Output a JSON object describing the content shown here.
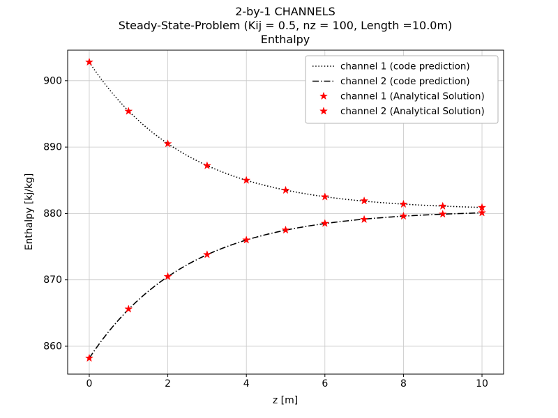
{
  "figure": {
    "title_lines": [
      "2-by-1 CHANNELS",
      "Steady-State-Problem (Kij = 0.5, nz = 100, Length =10.0m)",
      "Enthalpy"
    ],
    "xlabel": "z [m]",
    "ylabel": "Enthalpy [kj/kg]"
  },
  "colors": {
    "line": "#000000",
    "marker": "#ff0000",
    "grid": "#c8c8c8",
    "axis": "#000000",
    "legend_border": "#b3b3b3"
  },
  "chart_data": {
    "type": "line",
    "title": "2-by-1 CHANNELS | Steady-State-Problem (Kij = 0.5, nz = 100, Length =10.0m) | Enthalpy",
    "xlabel": "z [m]",
    "ylabel": "Enthalpy [kj/kg]",
    "xlim": [
      -0.55,
      10.55
    ],
    "ylim": [
      855.8,
      904.6
    ],
    "xticks": [
      0,
      2,
      4,
      6,
      8,
      10
    ],
    "yticks": [
      860,
      870,
      880,
      890,
      900
    ],
    "grid": true,
    "legend_position": "upper right",
    "series": [
      {
        "name": "channel 1 (code prediction)",
        "kind": "line",
        "style": "dotted",
        "color": "#000000",
        "model": {
          "mean": 880.5,
          "amplitude": 22.3,
          "decay": 0.4,
          "zmin": 0,
          "zmax": 10
        }
      },
      {
        "name": "channel 2 (code prediction)",
        "kind": "line",
        "style": "dashdot",
        "color": "#000000",
        "model": {
          "mean": 880.5,
          "amplitude": -22.3,
          "decay": 0.4,
          "zmin": 0,
          "zmax": 10
        }
      },
      {
        "name": "channel 1 (Analytical Solution)",
        "kind": "marker",
        "marker": "star",
        "color": "#ff0000",
        "x": [
          0,
          1,
          2,
          3,
          4,
          5,
          6,
          7,
          8,
          9,
          10
        ],
        "y": [
          902.8,
          895.4,
          890.5,
          887.2,
          885.0,
          883.5,
          882.5,
          881.9,
          881.4,
          881.1,
          880.9
        ]
      },
      {
        "name": "channel 2 (Analytical Solution)",
        "kind": "marker",
        "marker": "star",
        "color": "#ff0000",
        "x": [
          0,
          1,
          2,
          3,
          4,
          5,
          6,
          7,
          8,
          9,
          10
        ],
        "y": [
          858.2,
          865.6,
          870.5,
          873.8,
          876.0,
          877.5,
          878.5,
          879.1,
          879.6,
          879.9,
          880.1
        ]
      }
    ]
  }
}
